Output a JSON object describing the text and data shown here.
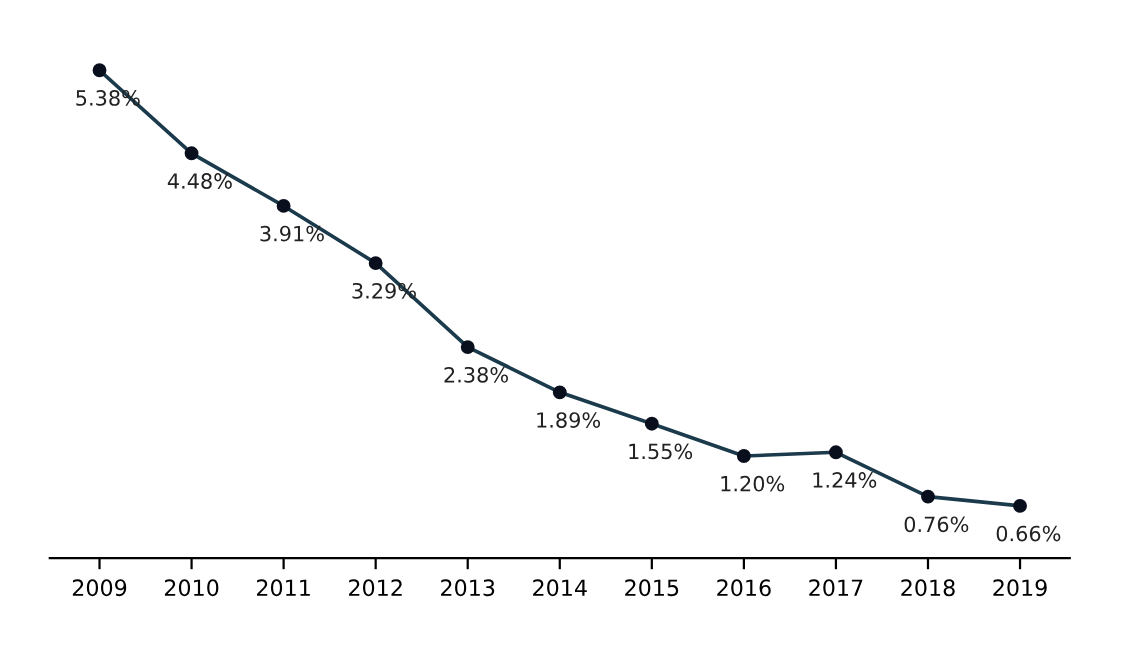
{
  "chart_data": {
    "type": "line",
    "categories": [
      "2009",
      "2010",
      "2011",
      "2012",
      "2013",
      "2014",
      "2015",
      "2016",
      "2017",
      "2018",
      "2019"
    ],
    "series": [
      {
        "color": "#1b3a4b",
        "values": [
          5.38,
          4.48,
          3.91,
          3.29,
          2.38,
          1.89,
          1.55,
          1.2,
          1.24,
          0.76,
          0.66
        ],
        "value_labels": [
          "5.38%",
          "4.48%",
          "3.91%",
          "3.29%",
          "2.38%",
          "1.89%",
          "1.55%",
          "1.20%",
          "1.24%",
          "0.76%",
          "0.66%"
        ]
      }
    ],
    "tick_labels": "x",
    "marker": "circle",
    "line_style": "solid",
    "grid": false,
    "legend": false
  }
}
